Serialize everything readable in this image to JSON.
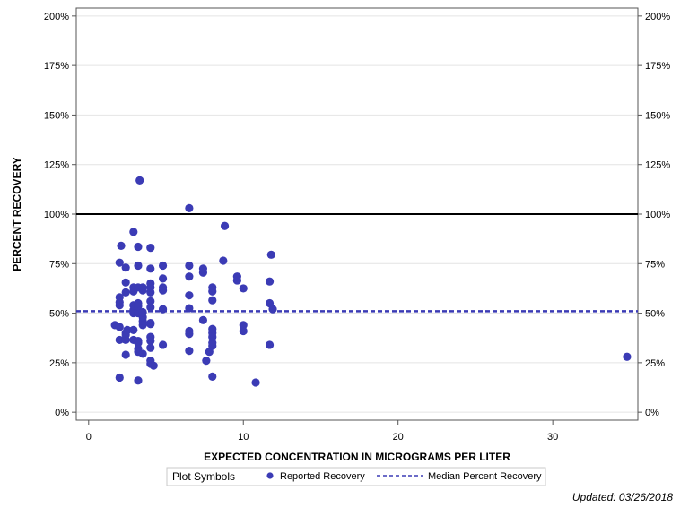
{
  "chart_data": {
    "type": "scatter",
    "xlabel": "EXPECTED CONCENTRATION IN MICROGRAMS PER LITER",
    "ylabel": "PERCENT RECOVERY",
    "xlim": [
      -0.8,
      35.5
    ],
    "ylim": [
      -4,
      204
    ],
    "x_ticks": [
      0,
      10,
      20,
      30
    ],
    "x_tick_labels": [
      "0",
      "10",
      "20",
      "30"
    ],
    "y_ticks": [
      0,
      25,
      50,
      75,
      100,
      125,
      150,
      175,
      200
    ],
    "y_tick_labels": [
      "0%",
      "25%",
      "50%",
      "75%",
      "100%",
      "125%",
      "150%",
      "175%",
      "200%"
    ],
    "grid": "horizontal",
    "reference_line": {
      "y": 100,
      "color": "#000000"
    },
    "median_line": {
      "y": 51,
      "color": "#3b3bb5",
      "style": "dashed"
    },
    "marker_color": "#3b3bb5",
    "series": [
      {
        "name": "Reported Recovery",
        "points": [
          [
            1.7,
            44
          ],
          [
            2.0,
            17.5
          ],
          [
            2.0,
            36.5
          ],
          [
            2.0,
            43
          ],
          [
            2.0,
            54
          ],
          [
            2.0,
            55.5
          ],
          [
            2.0,
            58
          ],
          [
            2.0,
            75.5
          ],
          [
            2.1,
            84
          ],
          [
            2.4,
            29
          ],
          [
            2.4,
            36.5
          ],
          [
            2.4,
            39
          ],
          [
            2.4,
            40
          ],
          [
            2.5,
            41.5
          ],
          [
            2.4,
            60.5
          ],
          [
            2.4,
            65.5
          ],
          [
            2.4,
            73
          ],
          [
            2.9,
            36.5
          ],
          [
            2.9,
            41.5
          ],
          [
            2.9,
            50
          ],
          [
            2.9,
            51.5
          ],
          [
            2.9,
            54
          ],
          [
            2.9,
            61
          ],
          [
            2.9,
            63
          ],
          [
            2.9,
            91
          ],
          [
            3.2,
            16
          ],
          [
            3.2,
            30.5
          ],
          [
            3.2,
            32
          ],
          [
            3.2,
            35
          ],
          [
            3.2,
            36
          ],
          [
            3.2,
            50
          ],
          [
            3.2,
            53.5
          ],
          [
            3.2,
            55
          ],
          [
            3.2,
            63
          ],
          [
            3.2,
            74
          ],
          [
            3.2,
            83.5
          ],
          [
            3.3,
            117
          ],
          [
            3.5,
            29.5
          ],
          [
            3.5,
            44
          ],
          [
            3.5,
            46
          ],
          [
            3.5,
            48
          ],
          [
            3.5,
            50.5
          ],
          [
            3.5,
            61.5
          ],
          [
            3.5,
            63
          ],
          [
            4.0,
            24.5
          ],
          [
            4.0,
            26
          ],
          [
            4.0,
            32.5
          ],
          [
            4.0,
            36
          ],
          [
            4.0,
            38
          ],
          [
            4.0,
            44.5
          ],
          [
            4.0,
            45
          ],
          [
            4.0,
            53
          ],
          [
            4.0,
            56
          ],
          [
            4.0,
            60.5
          ],
          [
            4.0,
            63
          ],
          [
            4.0,
            65
          ],
          [
            4.0,
            72.5
          ],
          [
            4.0,
            83
          ],
          [
            4.2,
            23.5
          ],
          [
            4.8,
            34
          ],
          [
            4.8,
            52
          ],
          [
            4.8,
            61.5
          ],
          [
            4.8,
            63
          ],
          [
            4.8,
            67.5
          ],
          [
            4.8,
            74
          ],
          [
            6.5,
            31
          ],
          [
            6.5,
            39.5
          ],
          [
            6.5,
            41
          ],
          [
            6.5,
            52.5
          ],
          [
            6.5,
            59
          ],
          [
            6.5,
            68.5
          ],
          [
            6.5,
            74
          ],
          [
            6.5,
            103
          ],
          [
            7.4,
            46.5
          ],
          [
            7.4,
            70.5
          ],
          [
            7.4,
            72.5
          ],
          [
            7.6,
            26
          ],
          [
            7.8,
            30.5
          ],
          [
            8.0,
            18
          ],
          [
            8.0,
            33.5
          ],
          [
            8.0,
            35
          ],
          [
            8.0,
            38
          ],
          [
            8.0,
            40
          ],
          [
            8.0,
            42
          ],
          [
            8.0,
            56.5
          ],
          [
            8.0,
            61
          ],
          [
            8.0,
            63
          ],
          [
            8.7,
            76.5
          ],
          [
            8.8,
            94
          ],
          [
            9.6,
            66.5
          ],
          [
            9.6,
            68.5
          ],
          [
            10.0,
            41
          ],
          [
            10.0,
            44
          ],
          [
            10.0,
            62.5
          ],
          [
            10.8,
            15
          ],
          [
            11.7,
            34
          ],
          [
            11.7,
            55
          ],
          [
            11.7,
            66
          ],
          [
            11.8,
            79.5
          ],
          [
            11.9,
            52
          ],
          [
            34.8,
            28
          ]
        ]
      }
    ],
    "legend": {
      "position": "bottom",
      "title": "Plot Symbols",
      "items": [
        "Reported Recovery",
        "Median Percent Recovery"
      ]
    }
  },
  "footnote": "Updated: 03/26/2018"
}
